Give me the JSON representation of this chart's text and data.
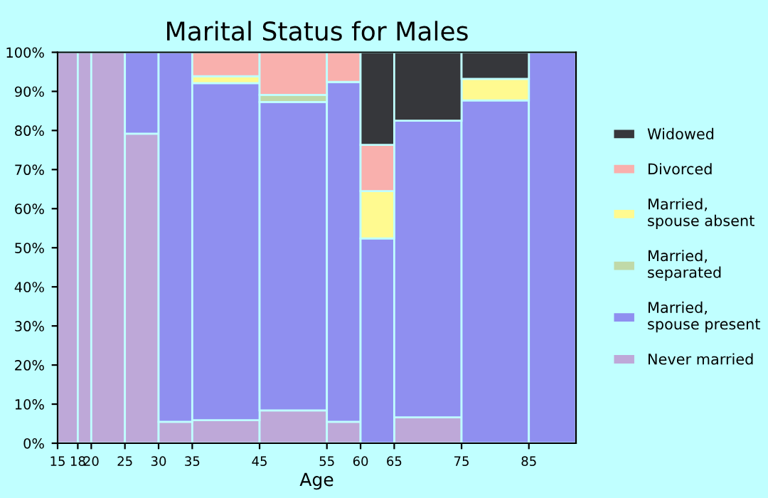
{
  "chart_data": {
    "type": "bar",
    "stacked": true,
    "title": "Marital Status for Males",
    "xlabel": "Age",
    "x": [
      16.5,
      19,
      22.5,
      27.5,
      32.5,
      40,
      50,
      57.5,
      62.5,
      70,
      80,
      88.5
    ],
    "xlim": [
      15,
      92
    ],
    "xticks": [
      15,
      18,
      20,
      25,
      30,
      35,
      45,
      55,
      60,
      65,
      75,
      85
    ],
    "ylim": [
      0,
      100
    ],
    "yticks": [
      {
        "value": 0,
        "label": "0%"
      },
      {
        "value": 10,
        "label": "10%"
      },
      {
        "value": 20,
        "label": "20%"
      },
      {
        "value": 30,
        "label": "30%"
      },
      {
        "value": 40,
        "label": "40%"
      },
      {
        "value": 50,
        "label": "50%"
      },
      {
        "value": 60,
        "label": "60%"
      },
      {
        "value": 70,
        "label": "70%"
      },
      {
        "value": 80,
        "label": "80%"
      },
      {
        "value": 90,
        "label": "90%"
      },
      {
        "value": 100,
        "label": "100%"
      }
    ],
    "grid": false,
    "legend": "right",
    "series": [
      {
        "name": "Never married",
        "color": "#bea8d8",
        "values": [
          100,
          100,
          100,
          79.2,
          5.5,
          5.9,
          8.4,
          5.5,
          null,
          6.6,
          null,
          null
        ]
      },
      {
        "name": "Married, spouse present",
        "color": "#8f8ff0",
        "values": [
          null,
          null,
          null,
          20.8,
          94.5,
          86.2,
          78.9,
          86.9,
          52.4,
          75.9,
          87.7,
          100
        ]
      },
      {
        "name": "Married, separated",
        "color": "#c0d9a8",
        "values": [
          null,
          null,
          null,
          null,
          null,
          null,
          1.8,
          null,
          null,
          null,
          null,
          null
        ]
      },
      {
        "name": "Married, spouse absent",
        "color": "#fffa90",
        "values": [
          null,
          null,
          null,
          null,
          null,
          1.8,
          null,
          null,
          12.1,
          null,
          5.5,
          null
        ]
      },
      {
        "name": "Divorced",
        "color": "#f9b0ad",
        "values": [
          null,
          null,
          null,
          null,
          null,
          6.1,
          10.9,
          7.6,
          11.8,
          null,
          null,
          null
        ]
      },
      {
        "name": "Widowed",
        "color": "#36373b",
        "values": [
          null,
          null,
          null,
          null,
          null,
          null,
          null,
          null,
          23.7,
          17.5,
          6.8,
          null
        ]
      }
    ]
  }
}
